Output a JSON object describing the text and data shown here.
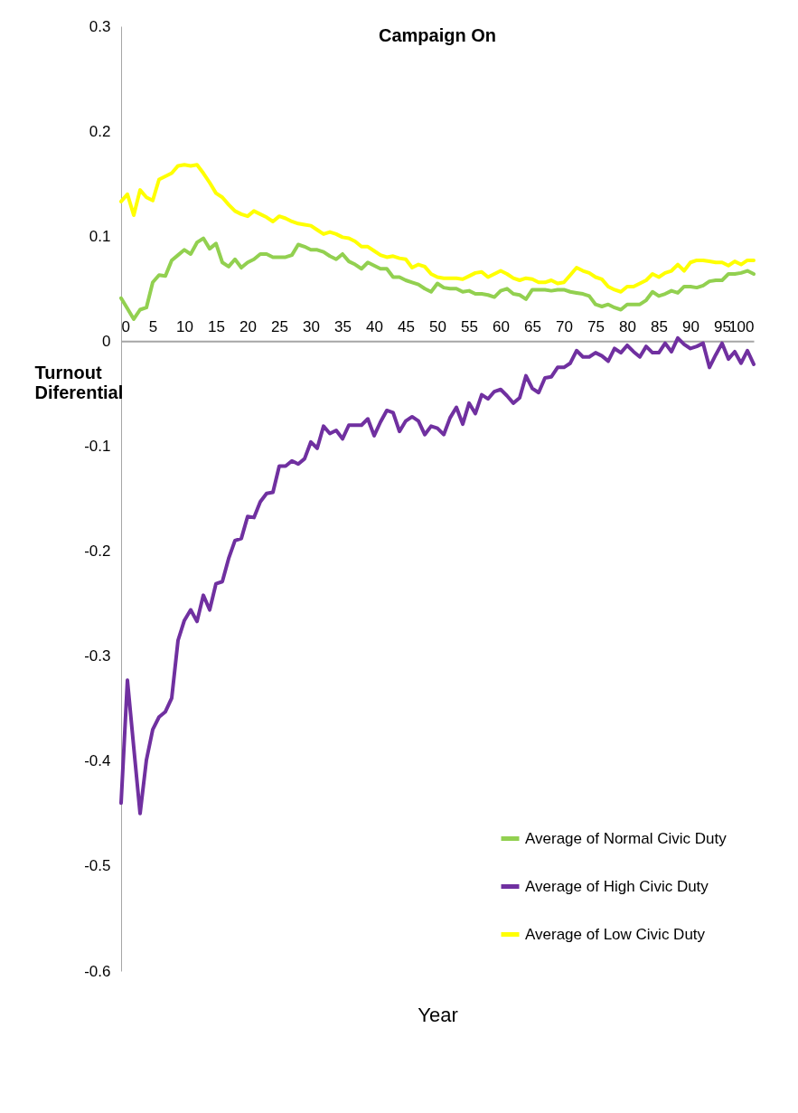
{
  "chart_data": {
    "type": "line",
    "title": "Campaign On",
    "xlabel": "Year",
    "ylabel": "Turnout Diferential",
    "x": [
      0,
      1,
      2,
      3,
      4,
      5,
      6,
      7,
      8,
      9,
      10,
      11,
      12,
      13,
      14,
      15,
      16,
      17,
      18,
      19,
      20,
      21,
      22,
      23,
      24,
      25,
      26,
      27,
      28,
      29,
      30,
      31,
      32,
      33,
      34,
      35,
      36,
      37,
      38,
      39,
      40,
      41,
      42,
      43,
      44,
      45,
      46,
      47,
      48,
      49,
      50,
      51,
      52,
      53,
      54,
      55,
      56,
      57,
      58,
      59,
      60,
      61,
      62,
      63,
      64,
      65,
      66,
      67,
      68,
      69,
      70,
      71,
      72,
      73,
      74,
      75,
      76,
      77,
      78,
      79,
      80,
      81,
      82,
      83,
      84,
      85,
      86,
      87,
      88,
      89,
      90,
      91,
      92,
      93,
      94,
      95,
      96,
      97,
      98,
      99,
      100
    ],
    "series": [
      {
        "name": "Average of Normal Civic Duty",
        "color": "#92d050",
        "values": [
          0.041,
          0.031,
          0.021,
          0.03,
          0.032,
          0.056,
          0.063,
          0.062,
          0.077,
          0.082,
          0.087,
          0.083,
          0.094,
          0.098,
          0.088,
          0.093,
          0.075,
          0.071,
          0.078,
          0.07,
          0.075,
          0.078,
          0.083,
          0.083,
          0.08,
          0.08,
          0.08,
          0.082,
          0.092,
          0.09,
          0.087,
          0.087,
          0.085,
          0.081,
          0.078,
          0.083,
          0.076,
          0.073,
          0.069,
          0.075,
          0.072,
          0.069,
          0.069,
          0.061,
          0.061,
          0.058,
          0.056,
          0.054,
          0.05,
          0.047,
          0.055,
          0.051,
          0.05,
          0.05,
          0.047,
          0.048,
          0.045,
          0.045,
          0.044,
          0.042,
          0.048,
          0.05,
          0.045,
          0.044,
          0.04,
          0.049,
          0.049,
          0.049,
          0.048,
          0.049,
          0.049,
          0.047,
          0.046,
          0.045,
          0.043,
          0.035,
          0.033,
          0.035,
          0.032,
          0.03,
          0.035,
          0.035,
          0.035,
          0.039,
          0.047,
          0.043,
          0.045,
          0.048,
          0.046,
          0.052,
          0.052,
          0.051,
          0.053,
          0.057,
          0.058,
          0.058,
          0.064,
          0.064,
          0.065,
          0.067,
          0.064
        ]
      },
      {
        "name": "Average of High Civic Duty",
        "color": "#7030a0",
        "values": [
          -0.44,
          -0.323,
          -0.387,
          -0.45,
          -0.399,
          -0.37,
          -0.358,
          -0.353,
          -0.34,
          -0.285,
          -0.266,
          -0.256,
          -0.267,
          -0.242,
          -0.256,
          -0.231,
          -0.229,
          -0.207,
          -0.19,
          -0.188,
          -0.167,
          -0.168,
          -0.153,
          -0.145,
          -0.144,
          -0.119,
          -0.119,
          -0.114,
          -0.117,
          -0.112,
          -0.096,
          -0.102,
          -0.081,
          -0.088,
          -0.085,
          -0.093,
          -0.08,
          -0.08,
          -0.08,
          -0.074,
          -0.09,
          -0.077,
          -0.066,
          -0.068,
          -0.086,
          -0.076,
          -0.072,
          -0.076,
          -0.089,
          -0.081,
          -0.083,
          -0.089,
          -0.073,
          -0.063,
          -0.079,
          -0.059,
          -0.069,
          -0.051,
          -0.055,
          -0.048,
          -0.046,
          -0.052,
          -0.059,
          -0.054,
          -0.033,
          -0.045,
          -0.049,
          -0.035,
          -0.034,
          -0.025,
          -0.025,
          -0.021,
          -0.009,
          -0.015,
          -0.015,
          -0.011,
          -0.014,
          -0.019,
          -0.007,
          -0.011,
          -0.004,
          -0.01,
          -0.015,
          -0.005,
          -0.011,
          -0.011,
          -0.002,
          -0.01,
          0.003,
          -0.003,
          -0.007,
          -0.005,
          -0.002,
          -0.025,
          -0.013,
          -0.002,
          -0.017,
          -0.01,
          -0.021,
          -0.009,
          -0.022
        ]
      },
      {
        "name": "Average of Low Civic Duty",
        "color": "#ffff00",
        "values": [
          0.133,
          0.14,
          0.12,
          0.144,
          0.137,
          0.134,
          0.154,
          0.157,
          0.16,
          0.167,
          0.168,
          0.167,
          0.168,
          0.16,
          0.151,
          0.141,
          0.137,
          0.13,
          0.124,
          0.121,
          0.119,
          0.124,
          0.121,
          0.118,
          0.114,
          0.119,
          0.117,
          0.114,
          0.112,
          0.111,
          0.11,
          0.106,
          0.102,
          0.104,
          0.102,
          0.099,
          0.098,
          0.095,
          0.09,
          0.09,
          0.086,
          0.082,
          0.08,
          0.081,
          0.079,
          0.078,
          0.07,
          0.073,
          0.071,
          0.064,
          0.061,
          0.06,
          0.06,
          0.06,
          0.059,
          0.062,
          0.065,
          0.066,
          0.061,
          0.064,
          0.067,
          0.064,
          0.06,
          0.058,
          0.06,
          0.059,
          0.056,
          0.056,
          0.058,
          0.055,
          0.056,
          0.063,
          0.07,
          0.067,
          0.065,
          0.061,
          0.059,
          0.052,
          0.049,
          0.047,
          0.052,
          0.052,
          0.055,
          0.058,
          0.064,
          0.061,
          0.065,
          0.067,
          0.073,
          0.067,
          0.075,
          0.077,
          0.077,
          0.076,
          0.075,
          0.075,
          0.072,
          0.076,
          0.073,
          0.077,
          0.077
        ]
      }
    ],
    "xlim": [
      0,
      100
    ],
    "xticks": [
      0,
      5,
      10,
      15,
      20,
      25,
      30,
      35,
      40,
      45,
      50,
      55,
      60,
      65,
      70,
      75,
      80,
      85,
      90,
      95,
      100
    ],
    "ylim": [
      -0.6,
      0.3
    ],
    "yticks": [
      -0.6,
      -0.5,
      -0.4,
      -0.3,
      -0.2,
      -0.1,
      0,
      0.1,
      0.2,
      0.3
    ],
    "grid": false,
    "legend": "bottom right",
    "marker": "none",
    "line_style": "solid"
  }
}
